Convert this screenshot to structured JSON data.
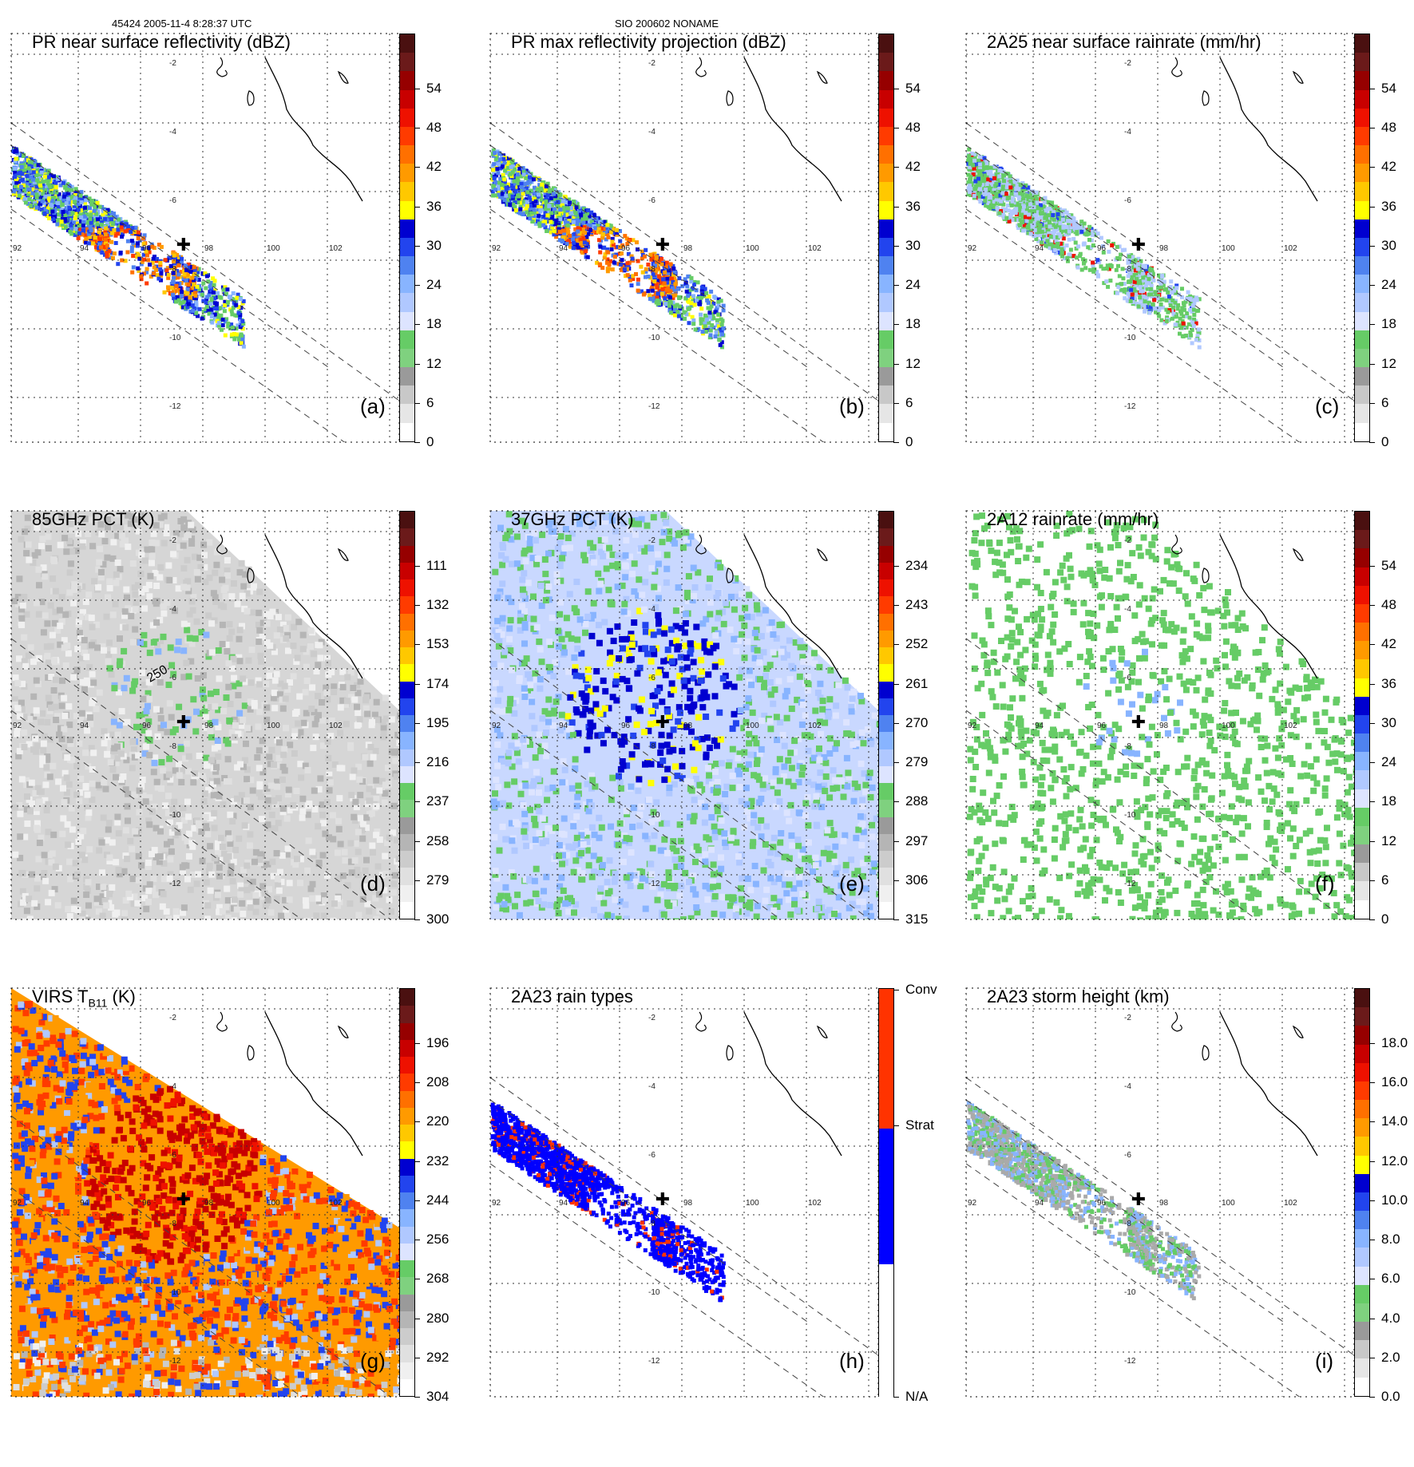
{
  "header": {
    "orbit_info": "45424 2005-11-4 8:28:37 UTC",
    "storm_info": "SIO 200602 NONAME"
  },
  "map": {
    "lat_labels": [
      "-2",
      "-4",
      "-6",
      "-8",
      "-10",
      "-12"
    ],
    "lon_labels": [
      "92",
      "94",
      "96",
      "98",
      "100",
      "102"
    ]
  },
  "panels": [
    {
      "id": "a",
      "title": "PR near surface reflectivity (dBZ)",
      "label": "(a)",
      "ticks": [
        "0",
        "6",
        "12",
        "18",
        "24",
        "30",
        "36",
        "42",
        "48",
        "54"
      ]
    },
    {
      "id": "b",
      "title": "PR max reflectivity projection (dBZ)",
      "label": "(b)",
      "ticks": [
        "0",
        "6",
        "12",
        "18",
        "24",
        "30",
        "36",
        "42",
        "48",
        "54"
      ]
    },
    {
      "id": "c",
      "title": "2A25 near surface rainrate (mm/hr)",
      "label": "(c)",
      "ticks": [
        "0",
        "6",
        "12",
        "18",
        "24",
        "30",
        "36",
        "42",
        "48",
        "54"
      ]
    },
    {
      "id": "d",
      "title": "85GHz PCT (K)",
      "label": "(d)",
      "ticks": [
        "300",
        "279",
        "258",
        "237",
        "216",
        "195",
        "174",
        "153",
        "132",
        "111"
      ],
      "contour_label": "250"
    },
    {
      "id": "e",
      "title": "37GHz PCT (K)",
      "label": "(e)",
      "ticks": [
        "315",
        "306",
        "297",
        "288",
        "279",
        "270",
        "261",
        "252",
        "243",
        "234"
      ]
    },
    {
      "id": "f",
      "title": "2A12 rainrate (mm/hr)",
      "label": "(f)",
      "ticks": [
        "0",
        "6",
        "12",
        "18",
        "24",
        "30",
        "36",
        "42",
        "48",
        "54"
      ]
    },
    {
      "id": "g",
      "title": "VIRS T",
      "title_sub": "B11",
      "title_suffix": " (K)",
      "label": "(g)",
      "ticks": [
        "304",
        "292",
        "280",
        "268",
        "256",
        "244",
        "232",
        "220",
        "208",
        "196"
      ]
    },
    {
      "id": "h",
      "title": "2A23 rain types",
      "label": "(h)",
      "ticks": [
        "N/A",
        "Strat",
        "Conv"
      ]
    },
    {
      "id": "i",
      "title": "2A23 storm height (km)",
      "label": "(i)",
      "ticks": [
        "0.0",
        "2.0",
        "4.0",
        "6.0",
        "8.0",
        "10.0",
        "12.0",
        "14.0",
        "16.0",
        "18.0"
      ]
    }
  ],
  "colors": {
    "dbz_scale": [
      "#ffffff",
      "#e6e6e6",
      "#c8c8c8",
      "#9a9a9a",
      "#7fd17f",
      "#66cc66",
      "#dde4ff",
      "#b0c8ff",
      "#88b4ff",
      "#4f82f0",
      "#2244ee",
      "#0000d0",
      "#ffff00",
      "#ffc800",
      "#ff9a00",
      "#ff7000",
      "#ff3b00",
      "#ee1100",
      "#c80000",
      "#960000",
      "#6b1a1a",
      "#4a1010"
    ],
    "tb_scale": [
      "#ffffff",
      "#f0f0f0",
      "#e0e0e0",
      "#cccccc",
      "#b5b5b5",
      "#9a9a9a",
      "#7fd17f",
      "#66cc66",
      "#dde4ff",
      "#b0c8ff",
      "#88b4ff",
      "#4f82f0",
      "#2244ee",
      "#0000d0",
      "#ffff00",
      "#ffc800",
      "#ff9a00",
      "#ff7000",
      "#ff3b00",
      "#ee1100",
      "#c80000",
      "#960000",
      "#6b1a1a",
      "#4a1010"
    ],
    "raintype": {
      "na": "#ffffff",
      "strat": "#0000ff",
      "conv": "#ff3300"
    }
  }
}
